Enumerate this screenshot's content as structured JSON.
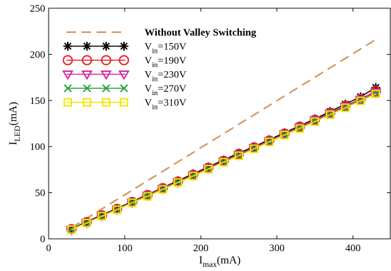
{
  "chart_data": {
    "type": "line",
    "xlabel": {
      "main": "I",
      "sub": "max",
      "unit": "(mA)"
    },
    "ylabel": {
      "main": "I",
      "sub": "LED",
      "unit": "(mA)"
    },
    "xlim": [
      0,
      450
    ],
    "ylim": [
      0,
      250
    ],
    "xticks": [
      0,
      100,
      200,
      300,
      400
    ],
    "yticks": [
      0,
      50,
      100,
      150,
      200,
      250
    ],
    "legend_position": "top-left",
    "grid": false,
    "series": [
      {
        "label": "Without Valley Switching",
        "label_parts": {
          "main": "Without Valley Switching",
          "sub": "",
          "rest": ""
        },
        "style": "dashed",
        "marker": "none",
        "color": "#d4935a",
        "x": [
          30,
          430
        ],
        "y": [
          12,
          216
        ]
      },
      {
        "label": "Vin=150V",
        "label_parts": {
          "main": "V",
          "sub": "in",
          "rest": "=150V"
        },
        "style": "solid",
        "marker": "asterisk",
        "color": "#000000",
        "x": [
          30,
          50,
          70,
          90,
          110,
          130,
          150,
          170,
          190,
          210,
          230,
          250,
          270,
          290,
          310,
          330,
          350,
          370,
          390,
          410,
          430
        ],
        "y": [
          11,
          18.5,
          26,
          33,
          40.5,
          48,
          55.5,
          63,
          70.5,
          78,
          85.5,
          93,
          100,
          107.5,
          115,
          122.5,
          130,
          138,
          146,
          154,
          164
        ]
      },
      {
        "label": "Vin=190V",
        "label_parts": {
          "main": "V",
          "sub": "in",
          "rest": "=190V"
        },
        "style": "solid",
        "marker": "circle",
        "color": "#e8202a",
        "x": [
          30,
          50,
          70,
          90,
          110,
          130,
          150,
          170,
          190,
          210,
          230,
          250,
          270,
          290,
          310,
          330,
          350,
          370,
          390,
          410,
          430
        ],
        "y": [
          10.5,
          18,
          25.5,
          32.5,
          40,
          47.5,
          55,
          62,
          69.5,
          77,
          84.5,
          92,
          99,
          106.5,
          114,
          121.5,
          129,
          136.5,
          144,
          151.5,
          160
        ]
      },
      {
        "label": "Vin=230V",
        "label_parts": {
          "main": "V",
          "sub": "in",
          "rest": "=230V"
        },
        "style": "solid",
        "marker": "triangle-down",
        "color": "#d62a9a",
        "x": [
          30,
          50,
          70,
          90,
          110,
          130,
          150,
          170,
          190,
          210,
          230,
          250,
          270,
          290,
          310,
          330,
          350,
          370,
          390,
          410,
          430
        ],
        "y": [
          10,
          17.5,
          25,
          32,
          39.5,
          47,
          54.5,
          61.5,
          69,
          76.5,
          84,
          91,
          98.5,
          106,
          113.5,
          121,
          128.5,
          136,
          143.5,
          151,
          159
        ]
      },
      {
        "label": "Vin=270V",
        "label_parts": {
          "main": "V",
          "sub": "in",
          "rest": "=270V"
        },
        "style": "solid",
        "marker": "x",
        "color": "#2e9e3e",
        "x": [
          30,
          50,
          70,
          90,
          110,
          130,
          150,
          170,
          190,
          210,
          230,
          250,
          270,
          290,
          310,
          330,
          350,
          370,
          390,
          410,
          430
        ],
        "y": [
          10,
          17.5,
          24.5,
          32,
          39.5,
          46.5,
          54,
          61.5,
          68.5,
          76,
          83.5,
          90.5,
          98,
          105.5,
          113,
          120,
          127.5,
          135,
          142.5,
          150,
          157.5
        ]
      },
      {
        "label": "Vin=310V",
        "label_parts": {
          "main": "V",
          "sub": "in",
          "rest": "=310V"
        },
        "style": "solid",
        "marker": "square",
        "color": "#f2e600",
        "x": [
          30,
          50,
          70,
          90,
          110,
          130,
          150,
          170,
          190,
          210,
          230,
          250,
          270,
          290,
          310,
          330,
          350,
          370,
          390,
          410,
          430
        ],
        "y": [
          10,
          17,
          24.5,
          31.5,
          39,
          46,
          53.5,
          61,
          68,
          75.5,
          83,
          90,
          97.5,
          105,
          112.5,
          119.5,
          127,
          134.5,
          142,
          149.5,
          157
        ]
      }
    ]
  }
}
